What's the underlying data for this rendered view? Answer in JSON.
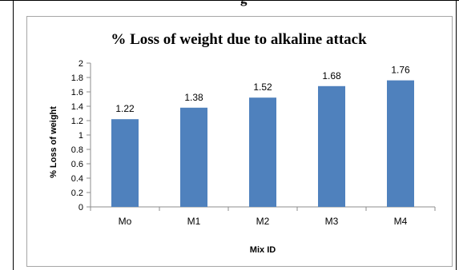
{
  "cut_caption": "g",
  "chart_data": {
    "type": "bar",
    "title": "% Loss of weight due to alkaline attack",
    "xlabel": "Mix ID",
    "ylabel": "% Loss of weight",
    "categories": [
      "Mo",
      "M1",
      "M2",
      "M3",
      "M4"
    ],
    "values": [
      1.22,
      1.38,
      1.52,
      1.68,
      1.76
    ],
    "value_labels": [
      "1.22",
      "1.38",
      "1.52",
      "1.68",
      "1.76"
    ],
    "ylim": [
      0,
      2
    ],
    "yticks": [
      "0",
      "0.2",
      "0.4",
      "0.6",
      "0.8",
      "1",
      "1.2",
      "1.4",
      "1.6",
      "1.8",
      "2"
    ],
    "grid": false,
    "legend": "none",
    "bar_color": "#4f81bd"
  }
}
